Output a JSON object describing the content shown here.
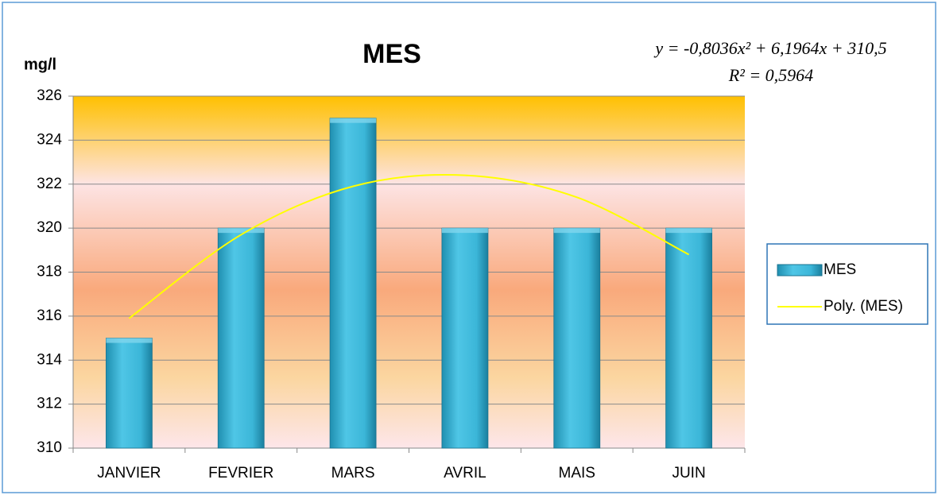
{
  "chart_data": {
    "type": "bar",
    "title": "MES",
    "y_label": "mg/l",
    "annotations": [
      "y = -0,8036x² + 6,1964x + 310,5",
      "R² = 0,5964"
    ],
    "categories": [
      "JANVIER",
      "FEVRIER",
      "MARS",
      "AVRIL",
      "MAIS",
      "JUIN"
    ],
    "series": [
      {
        "name": "MES",
        "type": "bar",
        "color": "#3bb6d8",
        "values": [
          315,
          320,
          325,
          320,
          320,
          320
        ]
      },
      {
        "name": "Poly. (MES)",
        "type": "line",
        "color": "#ffff00",
        "values": [
          315.9,
          319.7,
          321.9,
          322.4,
          321.4,
          318.8
        ]
      }
    ],
    "ylim": [
      310,
      326
    ],
    "yticks": [
      310,
      312,
      314,
      316,
      318,
      320,
      322,
      324,
      326
    ],
    "grid": true,
    "legend_position": "right"
  }
}
